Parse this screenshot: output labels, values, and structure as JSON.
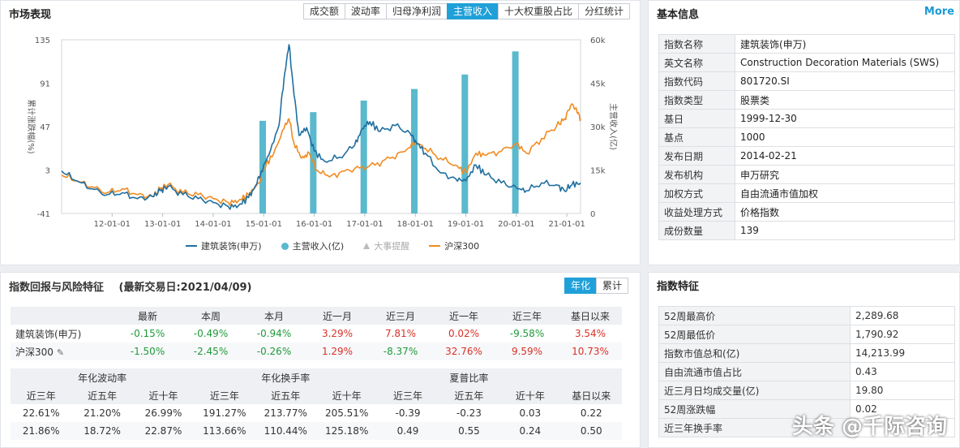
{
  "market": {
    "title": "市场表现",
    "tabs": [
      "成交额",
      "波动率",
      "归母净利润",
      "主营收入",
      "十大权重股占比",
      "分红统计"
    ],
    "active_tab": 3
  },
  "chart_data": {
    "type": "line",
    "left_axis_label": "累计涨跌幅(%)",
    "right_axis_label": "主营收入(亿)",
    "y_left_ticks": [
      "135",
      "91",
      "47",
      "3",
      "-41"
    ],
    "y_left_range": [
      -41,
      135
    ],
    "y_right_ticks": [
      "60k",
      "45k",
      "30k",
      "15k",
      "0"
    ],
    "y_right_range": [
      0,
      60000
    ],
    "x_ticks": [
      "12-01-01",
      "13-01-01",
      "14-01-01",
      "15-01-01",
      "16-01-01",
      "17-01-01",
      "18-01-01",
      "19-01-01",
      "20-01-01",
      "21-01-01"
    ],
    "x_range": [
      2011.0,
      2021.27
    ],
    "series": [
      {
        "name": "建筑装饰(申万)",
        "color": "#1f6fa0",
        "points": [
          [
            2011.0,
            2
          ],
          [
            2011.3,
            -8
          ],
          [
            2011.6,
            -16
          ],
          [
            2011.9,
            -22
          ],
          [
            2012.2,
            -20
          ],
          [
            2012.5,
            -26
          ],
          [
            2012.8,
            -24
          ],
          [
            2012.95,
            -18
          ],
          [
            2013.1,
            -14
          ],
          [
            2013.4,
            -22
          ],
          [
            2013.7,
            -26
          ],
          [
            2014.0,
            -30
          ],
          [
            2014.3,
            -34
          ],
          [
            2014.5,
            -33
          ],
          [
            2014.7,
            -25
          ],
          [
            2014.85,
            -12
          ],
          [
            2014.95,
            2
          ],
          [
            2015.1,
            18
          ],
          [
            2015.3,
            48
          ],
          [
            2015.4,
            95
          ],
          [
            2015.5,
            130
          ],
          [
            2015.58,
            90
          ],
          [
            2015.7,
            38
          ],
          [
            2015.85,
            46
          ],
          [
            2016.0,
            22
          ],
          [
            2016.2,
            12
          ],
          [
            2016.5,
            16
          ],
          [
            2016.8,
            28
          ],
          [
            2016.95,
            45
          ],
          [
            2017.1,
            52
          ],
          [
            2017.3,
            42
          ],
          [
            2017.6,
            48
          ],
          [
            2017.9,
            40
          ],
          [
            2018.0,
            33
          ],
          [
            2018.2,
            20
          ],
          [
            2018.5,
            0
          ],
          [
            2018.8,
            -6
          ],
          [
            2019.0,
            -8
          ],
          [
            2019.2,
            8
          ],
          [
            2019.4,
            -2
          ],
          [
            2019.7,
            -10
          ],
          [
            2020.0,
            -15
          ],
          [
            2020.2,
            -18
          ],
          [
            2020.5,
            -10
          ],
          [
            2020.8,
            -12
          ],
          [
            2020.95,
            -18
          ],
          [
            2021.1,
            -12
          ],
          [
            2021.27,
            -10
          ]
        ]
      },
      {
        "name": "沪深300",
        "color": "#f08c22",
        "points": [
          [
            2011.0,
            -2
          ],
          [
            2011.3,
            -8
          ],
          [
            2011.6,
            -14
          ],
          [
            2011.9,
            -20
          ],
          [
            2012.2,
            -16
          ],
          [
            2012.5,
            -22
          ],
          [
            2012.8,
            -24
          ],
          [
            2012.95,
            -16
          ],
          [
            2013.1,
            -12
          ],
          [
            2013.4,
            -20
          ],
          [
            2013.7,
            -22
          ],
          [
            2014.0,
            -26
          ],
          [
            2014.3,
            -30
          ],
          [
            2014.5,
            -28
          ],
          [
            2014.7,
            -22
          ],
          [
            2014.9,
            -10
          ],
          [
            2015.0,
            5
          ],
          [
            2015.2,
            20
          ],
          [
            2015.4,
            45
          ],
          [
            2015.5,
            55
          ],
          [
            2015.6,
            30
          ],
          [
            2015.75,
            15
          ],
          [
            2015.9,
            20
          ],
          [
            2016.05,
            3
          ],
          [
            2016.3,
            -4
          ],
          [
            2016.6,
            2
          ],
          [
            2016.9,
            5
          ],
          [
            2017.2,
            8
          ],
          [
            2017.5,
            15
          ],
          [
            2017.8,
            22
          ],
          [
            2018.0,
            32
          ],
          [
            2018.2,
            25
          ],
          [
            2018.5,
            15
          ],
          [
            2018.8,
            8
          ],
          [
            2019.0,
            0
          ],
          [
            2019.2,
            20
          ],
          [
            2019.4,
            18
          ],
          [
            2019.7,
            22
          ],
          [
            2020.0,
            30
          ],
          [
            2020.2,
            20
          ],
          [
            2020.5,
            35
          ],
          [
            2020.8,
            48
          ],
          [
            2020.95,
            55
          ],
          [
            2021.1,
            70
          ],
          [
            2021.2,
            62
          ],
          [
            2021.27,
            55
          ]
        ]
      }
    ],
    "bars": {
      "name": "主营收入(亿)",
      "color": "#5ab9cd",
      "x": [
        2014.98,
        2015.98,
        2016.98,
        2017.98,
        2018.98,
        2019.98
      ],
      "values": [
        32000,
        35000,
        39000,
        43000,
        48000,
        56000
      ]
    },
    "legend": [
      "建筑装饰(申万)",
      "主营收入(亿)",
      "大事提醒",
      "沪深300"
    ]
  },
  "basic": {
    "title": "基本信息",
    "more": "More",
    "rows": [
      {
        "k": "指数名称",
        "v": "建筑装饰(申万)"
      },
      {
        "k": "英文名称",
        "v": "Construction Decoration Materials (SWS)"
      },
      {
        "k": "指数代码",
        "v": "801720.SI"
      },
      {
        "k": "指数类型",
        "v": "股票类"
      },
      {
        "k": "基日",
        "v": "1999-12-30"
      },
      {
        "k": "基点",
        "v": "1000"
      },
      {
        "k": "发布日期",
        "v": "2014-02-21"
      },
      {
        "k": "发布机构",
        "v": "申万研究"
      },
      {
        "k": "加权方式",
        "v": "自由流通市值加权"
      },
      {
        "k": "收益处理方式",
        "v": "价格指数"
      },
      {
        "k": "成份数量",
        "v": "139"
      }
    ]
  },
  "returns": {
    "title": "指数回报与风险特征",
    "subtitle": "(最新交易日:2021/04/09)",
    "tabs": [
      "年化",
      "累计"
    ],
    "active_tab": 0,
    "headers": [
      "",
      "最新",
      "本周",
      "本月",
      "近一月",
      "近三月",
      "近一年",
      "近三年",
      "基日以来"
    ],
    "rows": [
      {
        "name": "建筑装饰(申万)",
        "values": [
          "-0.15%",
          "-0.49%",
          "-0.94%",
          "3.29%",
          "7.81%",
          "0.02%",
          "-9.58%",
          "3.54%"
        ]
      },
      {
        "name": "沪深300",
        "values": [
          "-1.50%",
          "-2.45%",
          "-0.26%",
          "1.29%",
          "-8.37%",
          "32.76%",
          "9.59%",
          "10.73%"
        ]
      }
    ],
    "risk_groups": [
      "年化波动率",
      "年化换手率",
      "夏普比率"
    ],
    "risk_headers": [
      "近三年",
      "近五年",
      "近十年",
      "近三年",
      "近五年",
      "近十年",
      "近三年",
      "近五年",
      "近十年",
      "基日以来"
    ],
    "risk_rows": [
      [
        "22.61%",
        "21.20%",
        "26.99%",
        "191.27%",
        "213.77%",
        "205.51%",
        "-0.39",
        "-0.23",
        "0.03",
        "0.22"
      ],
      [
        "21.86%",
        "18.72%",
        "22.87%",
        "113.66%",
        "110.44%",
        "125.18%",
        "0.49",
        "0.55",
        "0.24",
        "0.50"
      ]
    ]
  },
  "features": {
    "title": "指数特征",
    "rows": [
      {
        "k": "52周最高价",
        "v": "2,289.68"
      },
      {
        "k": "52周最低价",
        "v": "1,790.92"
      },
      {
        "k": "指数市值总和(亿)",
        "v": "14,213.99"
      },
      {
        "k": "自由流通市值占比",
        "v": "0.43"
      },
      {
        "k": "近三月日均成交量(亿)",
        "v": "19.80"
      },
      {
        "k": "52周涨跌幅",
        "v": "0.02"
      },
      {
        "k": "近三年换手率",
        "v": ""
      }
    ]
  },
  "watermark": "头条 @千际咨询",
  "colors": {
    "accent": "#20a0d8",
    "negative": "#1f9a3a",
    "positive": "#d93026"
  }
}
